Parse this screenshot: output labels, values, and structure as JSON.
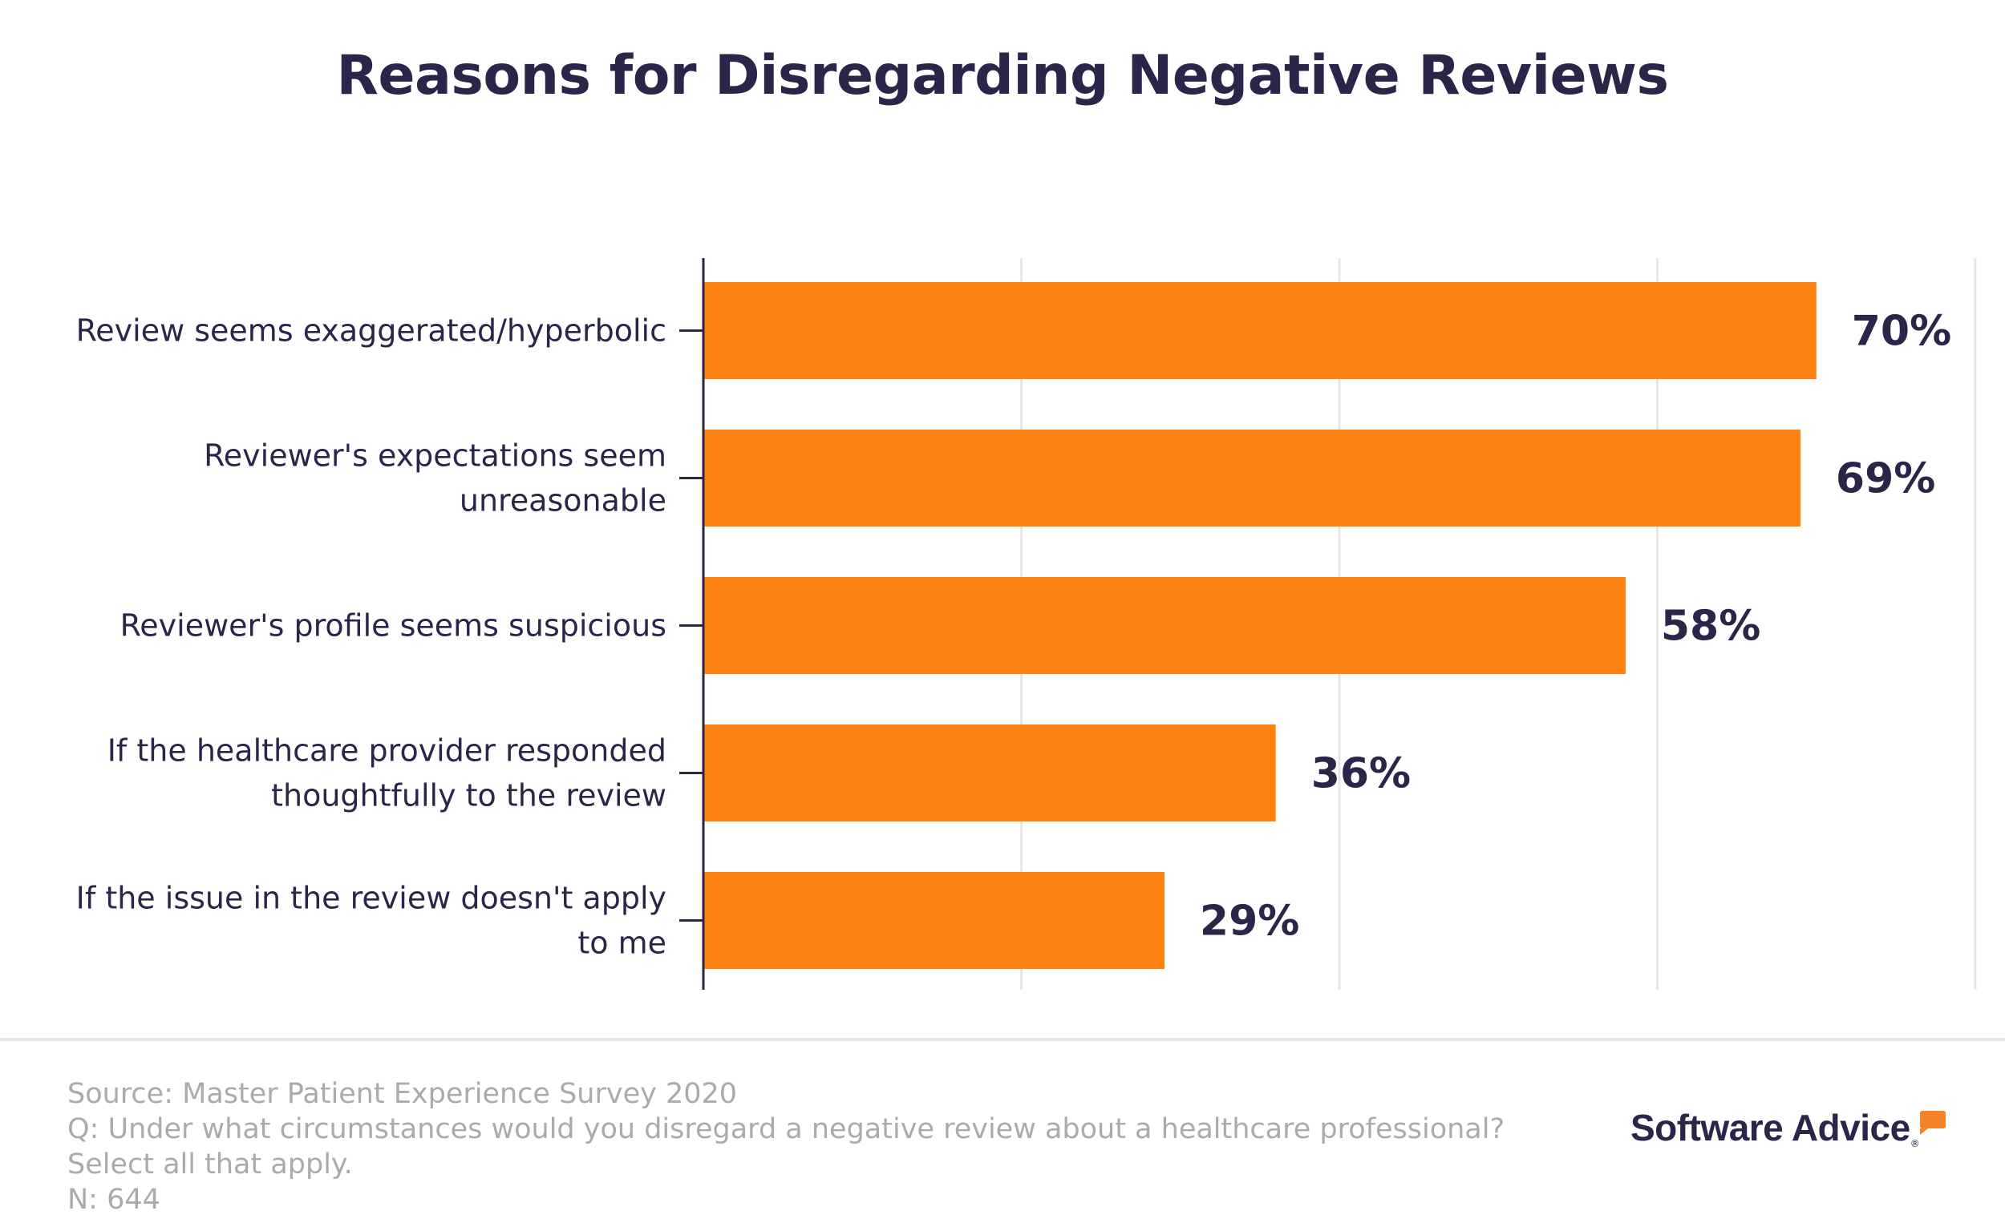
{
  "chart_data": {
    "type": "bar",
    "orientation": "horizontal",
    "title": "Reasons for Disregarding Negative Reviews",
    "categories": [
      "Review seems exaggerated/hyperbolic",
      "Reviewer's expectations seem unreasonable",
      "Reviewer's profile seems suspicious",
      "If the healthcare provider responded thoughtfully to the review",
      "If the issue in the review doesn't apply to me"
    ],
    "category_lines": [
      [
        "Review seems exaggerated/hyperbolic"
      ],
      [
        "Reviewer's expectations seem",
        "unreasonable"
      ],
      [
        "Reviewer's profile seems suspicious"
      ],
      [
        "If the healthcare provider responded",
        "thoughtfully to the review"
      ],
      [
        "If the issue in the review doesn't apply",
        "to me"
      ]
    ],
    "values": [
      70,
      69,
      58,
      36,
      29
    ],
    "data_labels": [
      "70%",
      "69%",
      "58%",
      "36%",
      "29%"
    ],
    "xlim": [
      0,
      80
    ],
    "gridlines": [
      20,
      40,
      60,
      80
    ],
    "grid": true,
    "xlabel": "",
    "ylabel": "",
    "bar_color": "#fd8110",
    "text_color": "#2b2649"
  },
  "footer": {
    "source": "Source: Master Patient Experience Survey 2020",
    "question": "Q: Under what circumstances would you disregard a negative review about a healthcare professional?",
    "instruction": "Select all that apply.",
    "n": "N: 644"
  },
  "logo": {
    "text": "Software Advice",
    "mark": "®"
  }
}
